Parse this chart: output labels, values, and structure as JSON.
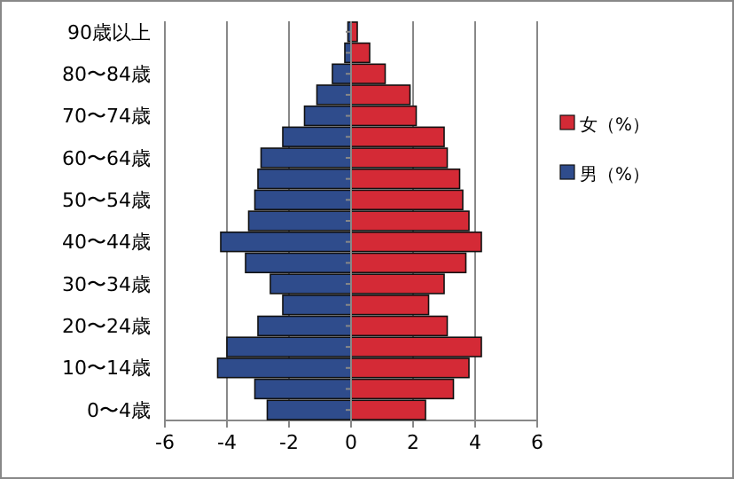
{
  "chart_data": {
    "type": "bar",
    "orientation": "horizontal",
    "stacked": true,
    "categories": [
      "90歳以上",
      null,
      "80〜84歳",
      null,
      "70〜74歳",
      null,
      "60〜64歳",
      null,
      "50〜54歳",
      null,
      "40〜44歳",
      null,
      "30〜34歳",
      null,
      "20〜24歳",
      null,
      "10〜14歳",
      null,
      "0〜4歳"
    ],
    "series": [
      {
        "name": "女（%）",
        "color": "#d42a36",
        "values": [
          0.2,
          0.6,
          1.1,
          1.9,
          2.1,
          3.0,
          3.1,
          3.5,
          3.6,
          3.8,
          4.2,
          3.7,
          3.0,
          2.5,
          3.1,
          4.2,
          3.8,
          3.3,
          2.4
        ]
      },
      {
        "name": "男（%）",
        "color": "#2f4c8c",
        "values": [
          -0.1,
          -0.2,
          -0.6,
          -1.1,
          -1.5,
          -2.2,
          -2.9,
          -3.0,
          -3.1,
          -3.3,
          -4.2,
          -3.4,
          -2.6,
          -2.2,
          -3.0,
          -4.0,
          -4.3,
          -3.1,
          -2.7
        ]
      }
    ],
    "xlim": [
      -6,
      6
    ],
    "xticks": [
      -6,
      -4,
      -2,
      0,
      2,
      4,
      6
    ],
    "grid": "x",
    "legend": "right"
  }
}
